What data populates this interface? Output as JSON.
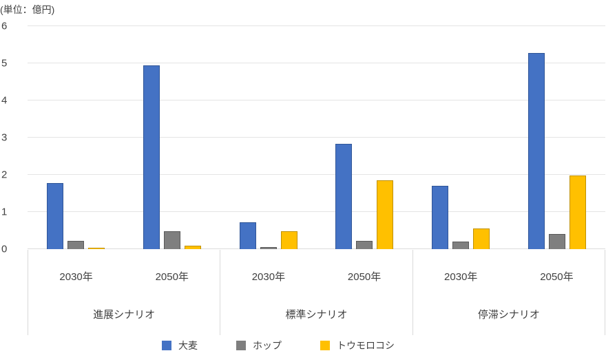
{
  "unit_label": "(単位：億円)",
  "chart_data": {
    "type": "bar",
    "title": "(単位：億円)",
    "ylabel": "億円",
    "ylim": [
      0,
      6
    ],
    "yticks": [
      0,
      1,
      2,
      3,
      4,
      5,
      6
    ],
    "grid": true,
    "legend_position": "bottom",
    "series": [
      {
        "key": "barley",
        "name": "大麦",
        "color": "#4472c4",
        "border_color": "#2f5597"
      },
      {
        "key": "hops",
        "name": "ホップ",
        "color": "#7f7f7f",
        "border_color": "#595959"
      },
      {
        "key": "corn",
        "name": "トウモロコシ",
        "color": "#ffc000",
        "border_color": "#bf9000"
      }
    ],
    "groups": [
      {
        "label": "進展シナリオ",
        "years": [
          {
            "label": "2030年",
            "values": [
              1.78,
              0.22,
              0.04
            ]
          },
          {
            "label": "2050年",
            "values": [
              4.95,
              0.48,
              0.09
            ]
          }
        ]
      },
      {
        "label": "標準シナリオ",
        "years": [
          {
            "label": "2030年",
            "values": [
              0.73,
              0.06,
              0.48
            ]
          },
          {
            "label": "2050年",
            "values": [
              2.84,
              0.22,
              1.86
            ]
          }
        ]
      },
      {
        "label": "停滞シナリオ",
        "years": [
          {
            "label": "2030年",
            "values": [
              1.7,
              0.21,
              0.55
            ]
          },
          {
            "label": "2050年",
            "values": [
              5.28,
              0.4,
              1.98
            ]
          }
        ]
      }
    ]
  }
}
